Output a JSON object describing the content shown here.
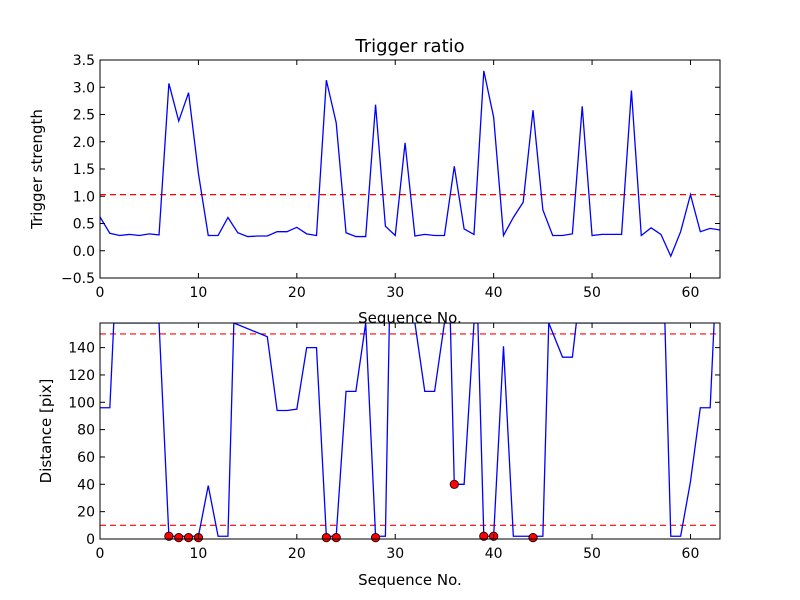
{
  "chart_data": [
    {
      "type": "line",
      "title": "Trigger ratio",
      "xlabel": "Sequence No.",
      "ylabel": "Trigger strength",
      "xlim": [
        0,
        63
      ],
      "ylim": [
        -0.5,
        3.5
      ],
      "xticks": [
        "0",
        "10",
        "20",
        "30",
        "40",
        "50",
        "60"
      ],
      "yticks": [
        "−0.5",
        "0.0",
        "0.5",
        "1.0",
        "1.5",
        "2.0",
        "2.5",
        "3.0",
        "3.5"
      ],
      "grid": false,
      "series": [
        {
          "color": "#0000ff",
          "x": [
            0,
            1,
            2,
            3,
            4,
            5,
            6,
            7,
            8,
            9,
            10,
            11,
            12,
            13,
            14,
            15,
            16,
            17,
            18,
            19,
            20,
            21,
            22,
            23,
            24,
            25,
            26,
            27,
            28,
            29,
            30,
            31,
            32,
            33,
            34,
            35,
            36,
            37,
            38,
            39,
            40,
            41,
            42,
            43,
            44,
            45,
            46,
            47,
            48,
            49,
            50,
            51,
            52,
            53,
            54,
            55,
            56,
            57,
            58,
            59,
            60,
            61,
            62,
            63
          ],
          "y": [
            0.62,
            0.32,
            0.28,
            0.3,
            0.28,
            0.31,
            0.29,
            3.07,
            2.38,
            2.9,
            1.42,
            0.28,
            0.28,
            0.61,
            0.33,
            0.26,
            0.27,
            0.27,
            0.35,
            0.35,
            0.43,
            0.31,
            0.28,
            3.13,
            2.35,
            0.33,
            0.26,
            0.26,
            2.68,
            0.45,
            0.28,
            1.98,
            0.27,
            0.3,
            0.28,
            0.28,
            1.55,
            0.4,
            0.3,
            3.3,
            2.45,
            0.28,
            0.61,
            0.89,
            2.58,
            0.75,
            0.28,
            0.28,
            0.31,
            2.65,
            0.28,
            0.3,
            0.3,
            0.3,
            2.94,
            0.28,
            0.42,
            0.3,
            -0.1,
            0.35,
            1.03,
            0.35,
            0.41,
            0.38
          ]
        }
      ],
      "threshold_lines": [
        {
          "y": 1.03,
          "color": "#ff0000",
          "style": "dashed"
        }
      ]
    },
    {
      "type": "line",
      "title": "",
      "xlabel": "Sequence No.",
      "ylabel": "Distance [pix]",
      "xlim": [
        0,
        63
      ],
      "ylim": [
        0,
        158
      ],
      "xticks": [
        "0",
        "10",
        "20",
        "30",
        "40",
        "50",
        "60"
      ],
      "yticks": [
        "0",
        "20",
        "40",
        "60",
        "80",
        "100",
        "120",
        "140"
      ],
      "grid": false,
      "series": [
        {
          "color": "#0000ff",
          "x": [
            0,
            1,
            1.4,
            6,
            7,
            8,
            9,
            10,
            11,
            12,
            13,
            13.6,
            17,
            18,
            19,
            20,
            21,
            22,
            23,
            24,
            25,
            26,
            27,
            28,
            29,
            29.4,
            32,
            33,
            34,
            35,
            35.6,
            36,
            37,
            38,
            38.4,
            39,
            40,
            41,
            42,
            43,
            44,
            45,
            45.6,
            47,
            48,
            48.4,
            57.4,
            58,
            59,
            60,
            61,
            62,
            62.4
          ],
          "y": [
            96,
            96,
            158,
            158,
            2,
            2,
            2,
            2,
            39,
            2,
            2,
            158,
            148,
            94,
            94,
            95,
            140,
            140,
            2,
            2,
            108,
            108,
            158,
            2,
            2,
            158,
            158,
            108,
            108,
            158,
            158,
            40,
            40,
            158,
            158,
            2,
            2,
            141,
            2,
            2,
            2,
            2,
            158,
            133,
            133,
            158,
            158,
            2,
            2,
            42,
            96,
            96,
            158
          ]
        }
      ],
      "markers": {
        "color": "#ff0000",
        "points": [
          {
            "x": 7,
            "y": 2
          },
          {
            "x": 8,
            "y": 1
          },
          {
            "x": 9,
            "y": 1
          },
          {
            "x": 10,
            "y": 1
          },
          {
            "x": 23,
            "y": 1
          },
          {
            "x": 24,
            "y": 1
          },
          {
            "x": 28,
            "y": 1
          },
          {
            "x": 36,
            "y": 40
          },
          {
            "x": 39,
            "y": 2
          },
          {
            "x": 40,
            "y": 2
          },
          {
            "x": 44,
            "y": 1
          }
        ]
      },
      "threshold_lines": [
        {
          "y": 150,
          "color": "#ff0000",
          "style": "dashed"
        },
        {
          "y": 10,
          "color": "#ff0000",
          "style": "dashed"
        }
      ]
    }
  ]
}
